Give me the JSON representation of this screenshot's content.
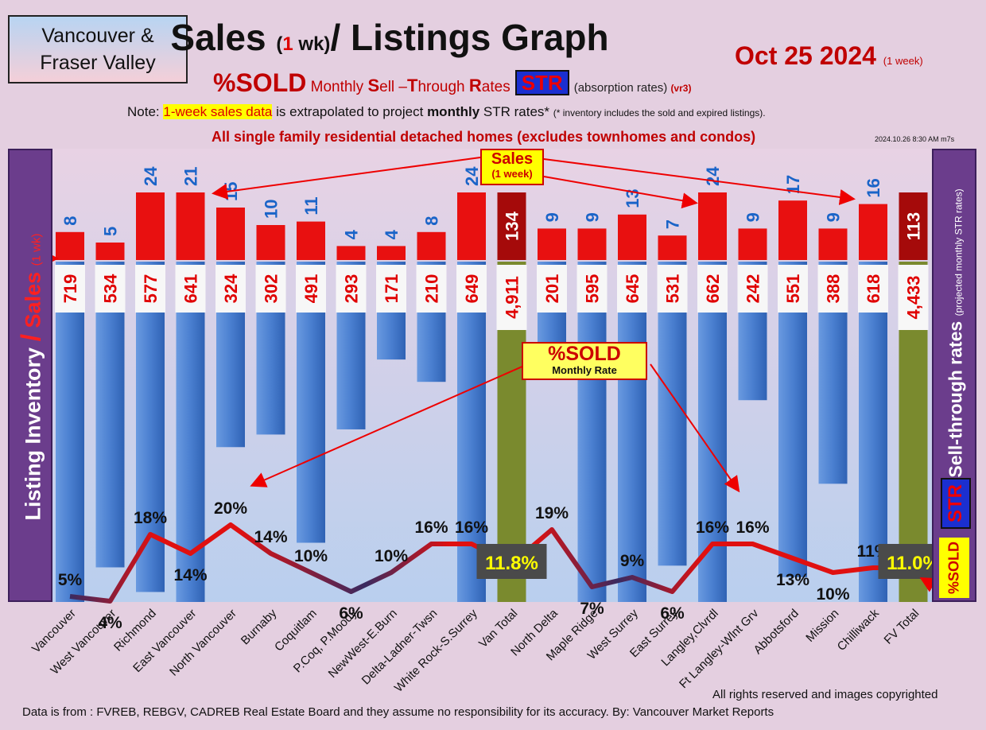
{
  "header": {
    "region_line1": "Vancouver &",
    "region_line2": "Fraser Valley",
    "title_a": "Sales ",
    "title_b": "(",
    "title_c": "1",
    "title_d": " wk)",
    "title_e": "/ Listings Graph",
    "date": "Oct 25  2024 ",
    "date_note": "(1 week)",
    "sub_sold": "%SOLD",
    "sub_m": " Monthly ",
    "sub_S": "S",
    "sub_ell": "ell –",
    "sub_T": "T",
    "sub_hrough": "hrough ",
    "sub_R": "R",
    "sub_ates": "ates",
    "str_label": "STR",
    "sub_absorption": "(absorption rates) ",
    "sub_vr": "(vr3)",
    "note_prefix": "Note: ",
    "note_highlight": "1-week sales data",
    "note_mid": " is extrapolated to project ",
    "note_bold": "monthly",
    "note_end": " STR rates* ",
    "note_small": "(* inventory includes the sold and expired listings).",
    "subtitle2": "All single family residential detached homes (excludes townhomes and condos)",
    "timestamp": "2024.10.26 8:30 AM m7s"
  },
  "axes": {
    "left_a": "Listing Inventory ",
    "left_slash": "/",
    "left_b": " Sales ",
    "left_c": "(1 wk)",
    "right_a": "Sell-through rates ",
    "right_b": "(projected monthly STR rates)",
    "right_str": "STR",
    "right_sold": "%SOLD"
  },
  "callouts": {
    "sales_l1": "Sales",
    "sales_l2": "(1 week)",
    "sold_l1": "%SOLD",
    "sold_l2": "Monthly Rate"
  },
  "footer": {
    "rights": "All rights reserved and  images copyrighted",
    "source": "Data is from : FVREB, REBGV, CADREB Real Estate Board and they assume no responsibility for its accuracy. By: Vancouver Market Reports"
  },
  "colors": {
    "inventory_bar": "#4a7fd0",
    "total_bar": "#7a8a2e",
    "sales_bar": "#e81010",
    "total_sales_bar": "#a50a0a",
    "sales_label": "#1a64c8",
    "inventory_label": "#e00000",
    "str_line": "#d81818"
  },
  "chart_data": {
    "type": "bar",
    "categories": [
      "Vancouver",
      "West Vancouver",
      "Richmond",
      "East Vancouver",
      "North Vancouver",
      "Burnaby",
      "Coquitlam",
      "P.Coq, P.Moody",
      "NewWest-E.Burn",
      "Delta-Ladner-Twsn",
      "White Rock-S.Surrey",
      "Van Total",
      "North Delta",
      "Maple Ridge",
      "West Surrey",
      "East Surrey",
      "Langley,Clvrdl",
      "Ft Langley-Wlnt Grv",
      "Abbotsford",
      "Mission",
      "Chilliwack",
      "FV Total"
    ],
    "series": [
      {
        "name": "Listing Inventory",
        "values": [
          719,
          534,
          577,
          641,
          324,
          302,
          491,
          293,
          171,
          210,
          649,
          4911,
          201,
          595,
          645,
          531,
          662,
          242,
          551,
          388,
          618,
          4433
        ],
        "labels": [
          "719",
          "534",
          "577",
          "641",
          "324",
          "302",
          "491",
          "293",
          "171",
          "210",
          "649",
          "4,911",
          "201",
          "595",
          "645",
          "531",
          "662",
          "242",
          "551",
          "388",
          "618",
          "4,433"
        ]
      },
      {
        "name": "Sales",
        "values": [
          8,
          5,
          24,
          21,
          15,
          10,
          11,
          4,
          4,
          8,
          24,
          134,
          9,
          9,
          13,
          7,
          24,
          9,
          17,
          9,
          16,
          113
        ]
      },
      {
        "name": "Sell-through rates",
        "values": [
          5,
          4,
          18,
          14,
          20,
          14,
          10,
          6,
          10,
          16,
          16,
          11.8,
          19,
          7,
          9,
          6,
          16,
          16,
          13,
          10,
          11,
          11.0
        ],
        "labels": [
          "5%",
          "4%",
          "18%",
          "14%",
          "20%",
          "14%",
          "10%",
          "6%",
          "10%",
          "16%",
          "16%",
          "11.8%",
          "19%",
          "7%",
          "9%",
          "6%",
          "16%",
          "16%",
          "13%",
          "10%",
          "11%",
          "11.0%"
        ]
      }
    ],
    "totals": [
      "Van Total",
      "FV Total"
    ]
  }
}
